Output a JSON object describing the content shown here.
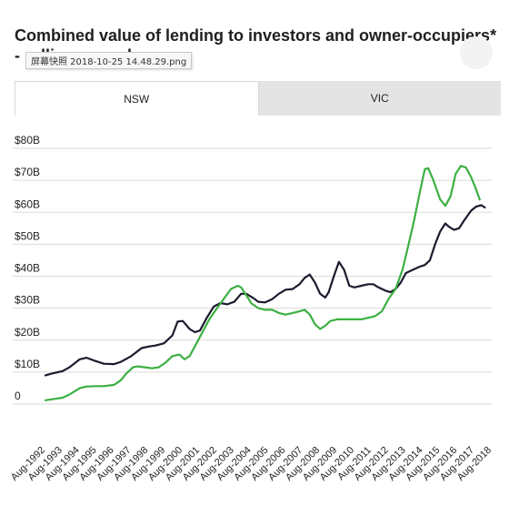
{
  "header": {
    "title": "Combined value of lending to investors and owner-occupiers* - rolling annual",
    "tooltip": "屏幕快照 2018-10-25 14.48.29.png"
  },
  "tabs": [
    {
      "label": "NSW",
      "active": true
    },
    {
      "label": "VIC",
      "active": false
    }
  ],
  "colors": {
    "series_a": "#1b1b2e",
    "series_b": "#3cb043",
    "grid": "#dadada"
  },
  "chart_data": {
    "type": "line",
    "ylim": [
      0,
      80
    ],
    "y_ticks": [
      {
        "value": 0,
        "label": "0"
      },
      {
        "value": 10,
        "label": "$10B"
      },
      {
        "value": 20,
        "label": "$20B"
      },
      {
        "value": 30,
        "label": "$30B"
      },
      {
        "value": 40,
        "label": "$40B"
      },
      {
        "value": 50,
        "label": "$50B"
      },
      {
        "value": 60,
        "label": "$60B"
      },
      {
        "value": 70,
        "label": "$70B"
      },
      {
        "value": 80,
        "label": "$80B"
      }
    ],
    "x_categories": [
      "Aug-1992",
      "Aug-1993",
      "Aug-1994",
      "Aug-1995",
      "Aug-1996",
      "Aug-1997",
      "Aug-1998",
      "Aug-1999",
      "Aug-2000",
      "Aug-2001",
      "Aug-2002",
      "Aug-2003",
      "Aug-2004",
      "Aug-2005",
      "Aug-2006",
      "Aug-2007",
      "Aug-2008",
      "Aug-2009",
      "Aug-2010",
      "Aug-2011",
      "Aug-2012",
      "Aug-2013",
      "Aug-2014",
      "Aug-2015",
      "Aug-2016",
      "Aug-2017",
      "Aug-2018"
    ],
    "series": [
      {
        "color": "#1b1b2e",
        "points": [
          [
            1992.6,
            9
          ],
          [
            1993.0,
            9.6
          ],
          [
            1993.6,
            10.3
          ],
          [
            1994.0,
            11.5
          ],
          [
            1994.6,
            14
          ],
          [
            1995.0,
            14.5
          ],
          [
            1995.5,
            13.5
          ],
          [
            1996.0,
            12.6
          ],
          [
            1996.6,
            12.5
          ],
          [
            1997.0,
            13.2
          ],
          [
            1997.6,
            15
          ],
          [
            1998.2,
            17.5
          ],
          [
            1998.6,
            18
          ],
          [
            1999.0,
            18.3
          ],
          [
            1999.5,
            19
          ],
          [
            2000.0,
            21.5
          ],
          [
            2000.3,
            25.8
          ],
          [
            2000.6,
            26
          ],
          [
            2001.0,
            23.5
          ],
          [
            2001.3,
            22.5
          ],
          [
            2001.6,
            23
          ],
          [
            2002.0,
            27
          ],
          [
            2002.4,
            30.5
          ],
          [
            2002.8,
            31.6
          ],
          [
            2003.2,
            31.2
          ],
          [
            2003.6,
            32
          ],
          [
            2004.0,
            34.5
          ],
          [
            2004.3,
            34.5
          ],
          [
            2004.7,
            33.2
          ],
          [
            2005.0,
            32
          ],
          [
            2005.4,
            31.8
          ],
          [
            2005.8,
            32.8
          ],
          [
            2006.2,
            34.5
          ],
          [
            2006.6,
            35.8
          ],
          [
            2007.0,
            36
          ],
          [
            2007.4,
            37.5
          ],
          [
            2007.7,
            39.5
          ],
          [
            2008.0,
            40.5
          ],
          [
            2008.3,
            38
          ],
          [
            2008.6,
            34.5
          ],
          [
            2008.9,
            33.3
          ],
          [
            2009.1,
            35
          ],
          [
            2009.4,
            40
          ],
          [
            2009.7,
            44.5
          ],
          [
            2010.0,
            42
          ],
          [
            2010.3,
            37
          ],
          [
            2010.6,
            36.5
          ],
          [
            2011.0,
            37
          ],
          [
            2011.4,
            37.5
          ],
          [
            2011.7,
            37.5
          ],
          [
            2012.0,
            36.5
          ],
          [
            2012.4,
            35.5
          ],
          [
            2012.7,
            35
          ],
          [
            2013.0,
            36
          ],
          [
            2013.3,
            38
          ],
          [
            2013.6,
            41
          ],
          [
            2014.0,
            42
          ],
          [
            2014.4,
            43
          ],
          [
            2014.7,
            43.5
          ],
          [
            2015.0,
            45
          ],
          [
            2015.3,
            50
          ],
          [
            2015.6,
            54
          ],
          [
            2015.9,
            56.5
          ],
          [
            2016.1,
            55.5
          ],
          [
            2016.4,
            54.5
          ],
          [
            2016.7,
            55
          ],
          [
            2017.0,
            57.5
          ],
          [
            2017.4,
            60.5
          ],
          [
            2017.7,
            61.8
          ],
          [
            2018.0,
            62.2
          ],
          [
            2018.2,
            61.5
          ]
        ]
      },
      {
        "color": "#3cb043",
        "points": [
          [
            1992.6,
            1.2
          ],
          [
            1993.0,
            1.5
          ],
          [
            1993.6,
            2
          ],
          [
            1994.0,
            3
          ],
          [
            1994.6,
            5
          ],
          [
            1995.0,
            5.5
          ],
          [
            1995.5,
            5.6
          ],
          [
            1996.0,
            5.6
          ],
          [
            1996.6,
            6
          ],
          [
            1997.0,
            7.5
          ],
          [
            1997.3,
            9.5
          ],
          [
            1997.7,
            11.5
          ],
          [
            1998.0,
            11.8
          ],
          [
            1998.4,
            11.5
          ],
          [
            1998.8,
            11.2
          ],
          [
            1999.2,
            11.5
          ],
          [
            1999.6,
            13
          ],
          [
            2000.0,
            15
          ],
          [
            2000.4,
            15.5
          ],
          [
            2000.7,
            14
          ],
          [
            2001.0,
            15
          ],
          [
            2001.4,
            19
          ],
          [
            2001.8,
            23
          ],
          [
            2002.2,
            27
          ],
          [
            2002.6,
            30
          ],
          [
            2003.0,
            33
          ],
          [
            2003.4,
            36
          ],
          [
            2003.8,
            37
          ],
          [
            2004.0,
            36.5
          ],
          [
            2004.3,
            34
          ],
          [
            2004.6,
            31.5
          ],
          [
            2005.0,
            30
          ],
          [
            2005.4,
            29.5
          ],
          [
            2005.8,
            29.5
          ],
          [
            2006.2,
            28.5
          ],
          [
            2006.6,
            28
          ],
          [
            2007.0,
            28.5
          ],
          [
            2007.4,
            29
          ],
          [
            2007.7,
            29.5
          ],
          [
            2008.0,
            28
          ],
          [
            2008.3,
            25
          ],
          [
            2008.6,
            23.5
          ],
          [
            2008.9,
            24.5
          ],
          [
            2009.2,
            26
          ],
          [
            2009.6,
            26.5
          ],
          [
            2010.0,
            26.5
          ],
          [
            2010.5,
            26.5
          ],
          [
            2011.0,
            26.5
          ],
          [
            2011.4,
            27
          ],
          [
            2011.8,
            27.5
          ],
          [
            2012.2,
            29
          ],
          [
            2012.6,
            33
          ],
          [
            2013.0,
            36
          ],
          [
            2013.4,
            42
          ],
          [
            2013.8,
            51
          ],
          [
            2014.1,
            58
          ],
          [
            2014.4,
            66
          ],
          [
            2014.7,
            73.5
          ],
          [
            2014.9,
            73.8
          ],
          [
            2015.2,
            70
          ],
          [
            2015.6,
            64
          ],
          [
            2015.9,
            62
          ],
          [
            2016.2,
            65
          ],
          [
            2016.5,
            72
          ],
          [
            2016.8,
            74.5
          ],
          [
            2017.1,
            74
          ],
          [
            2017.4,
            71
          ],
          [
            2017.7,
            67
          ],
          [
            2017.9,
            64
          ]
        ]
      }
    ]
  }
}
